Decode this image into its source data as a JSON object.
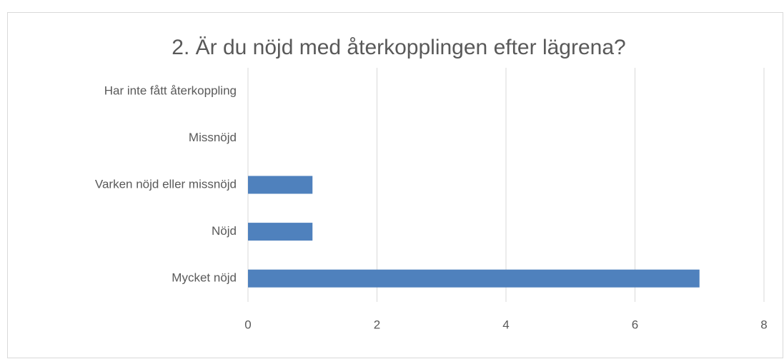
{
  "chart_data": {
    "type": "barh",
    "title": "2. Är du nöjd med återkopplingen efter lägrena?",
    "categories": [
      "Har inte fått återkoppling",
      "Missnöjd",
      "Varken nöjd eller missnöjd",
      "Nöjd",
      "Mycket nöjd"
    ],
    "values": [
      0,
      0,
      1,
      1,
      7
    ],
    "color": "#4f81bd",
    "xlim": [
      0,
      8
    ],
    "xticks": [
      0,
      2,
      4,
      6,
      8
    ],
    "grid": true
  }
}
